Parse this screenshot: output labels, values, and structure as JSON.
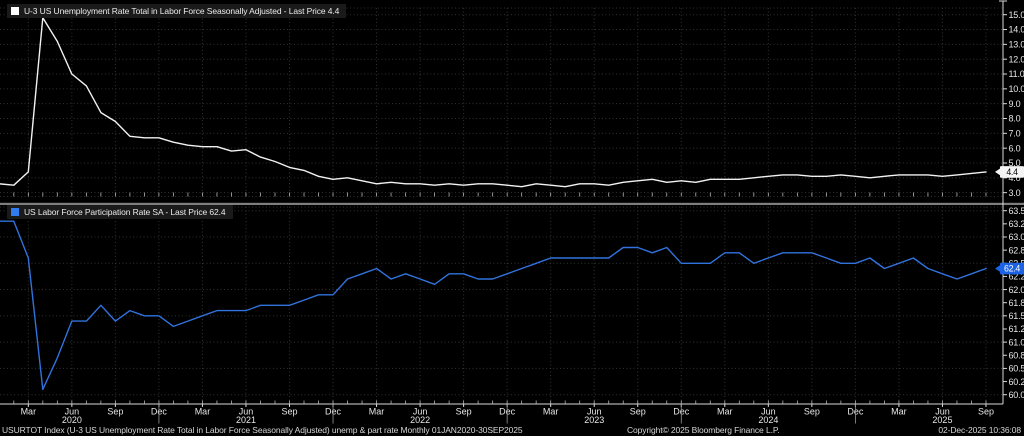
{
  "window": {
    "status_left": "USURTOT Index (U-3 US Unemployment Rate Total in Labor Force Seasonally Adjusted) unemp & part rate Monthly 01JAN2020-30SEP2025",
    "copyright": "Copyright© 2025 Bloomberg Finance L.P.",
    "datetime": "02-Dec-2025 10:36:08",
    "background_color": "#000000",
    "grid_color": "#323232",
    "axis_color": "#d9d9d9",
    "separator_color": "#7e7e7e",
    "label_color": "#e6e6e6"
  },
  "x_axis": {
    "range": {
      "start": "Jan 2020",
      "end": "Sep 2025",
      "frequency": "monthly",
      "points": 69
    },
    "quarter_ticks": [
      {
        "i": 2,
        "label": "Mar"
      },
      {
        "i": 5,
        "label": "Jun"
      },
      {
        "i": 8,
        "label": "Sep"
      },
      {
        "i": 11,
        "label": "Dec"
      },
      {
        "i": 14,
        "label": "Mar"
      },
      {
        "i": 17,
        "label": "Jun"
      },
      {
        "i": 20,
        "label": "Sep"
      },
      {
        "i": 23,
        "label": "Dec"
      },
      {
        "i": 26,
        "label": "Mar"
      },
      {
        "i": 29,
        "label": "Jun"
      },
      {
        "i": 32,
        "label": "Sep"
      },
      {
        "i": 35,
        "label": "Dec"
      },
      {
        "i": 38,
        "label": "Mar"
      },
      {
        "i": 41,
        "label": "Jun"
      },
      {
        "i": 44,
        "label": "Sep"
      },
      {
        "i": 47,
        "label": "Dec"
      },
      {
        "i": 50,
        "label": "Mar"
      },
      {
        "i": 53,
        "label": "Jun"
      },
      {
        "i": 56,
        "label": "Sep"
      },
      {
        "i": 59,
        "label": "Dec"
      },
      {
        "i": 62,
        "label": "Mar"
      },
      {
        "i": 65,
        "label": "Jun"
      },
      {
        "i": 68,
        "label": "Sep"
      }
    ],
    "year_ticks": [
      {
        "i": 5,
        "label": "2020"
      },
      {
        "i": 17,
        "label": "2021"
      },
      {
        "i": 29,
        "label": "2022"
      },
      {
        "i": 41,
        "label": "2023"
      },
      {
        "i": 53,
        "label": "2024"
      },
      {
        "i": 65,
        "label": "2025"
      }
    ],
    "year_separator_indices": [
      11,
      23,
      35,
      47,
      59
    ]
  },
  "chart_data": [
    {
      "type": "line",
      "title": "U-3 US Unemployment Rate Total in Labor Force Seasonally Adjusted - Last Price 4.4",
      "series_name": "U-3 US Unemployment Rate Total in Labor Force Seasonally Adjusted",
      "last_price": "4.4",
      "line_color": "#f2f2f2",
      "marker_color": "#ffffff",
      "badge_bg": "#f4f4f4",
      "badge_fg": "#000000",
      "ylim": [
        2.78,
        15.45
      ],
      "grid_step": 1.0,
      "legend_position": "top-left",
      "yticks": [
        {
          "v": 15.0,
          "label": "15.0"
        },
        {
          "v": 14.0,
          "label": "14.0"
        },
        {
          "v": 13.0,
          "label": "13.0"
        },
        {
          "v": 12.0,
          "label": "12.0"
        },
        {
          "v": 11.0,
          "label": "11.0"
        },
        {
          "v": 10.0,
          "label": "10.0"
        },
        {
          "v": 9.0,
          "label": "9.0"
        },
        {
          "v": 8.0,
          "label": "8.0"
        },
        {
          "v": 7.0,
          "label": "7.0"
        },
        {
          "v": 6.0,
          "label": "6.0"
        },
        {
          "v": 5.0,
          "label": "5.0"
        },
        {
          "v": 4.0,
          "label": "4.0"
        },
        {
          "v": 3.0,
          "label": "3.0"
        }
      ],
      "values": [
        3.6,
        3.5,
        4.4,
        14.8,
        13.2,
        11.0,
        10.2,
        8.4,
        7.8,
        6.8,
        6.7,
        6.7,
        6.4,
        6.2,
        6.1,
        6.1,
        5.8,
        5.9,
        5.4,
        5.1,
        4.7,
        4.5,
        4.1,
        3.9,
        4.0,
        3.8,
        3.6,
        3.7,
        3.6,
        3.6,
        3.5,
        3.6,
        3.5,
        3.6,
        3.6,
        3.5,
        3.4,
        3.6,
        3.5,
        3.4,
        3.6,
        3.6,
        3.5,
        3.7,
        3.8,
        3.9,
        3.7,
        3.8,
        3.7,
        3.9,
        3.9,
        3.9,
        4.0,
        4.1,
        4.2,
        4.2,
        4.1,
        4.1,
        4.2,
        4.1,
        4.0,
        4.1,
        4.2,
        4.2,
        4.2,
        4.1,
        4.2,
        4.3,
        4.4
      ]
    },
    {
      "type": "line",
      "title": "US Labor Force Participation Rate SA - Last Price 62.4",
      "series_name": "US Labor Force Participation Rate SA",
      "last_price": "62.4",
      "line_color": "#3173dd",
      "marker_color": "#2f7bef",
      "badge_bg": "#1b62e4",
      "badge_fg": "#ffffff",
      "ylim": [
        59.82,
        63.57
      ],
      "grid_step": 0.5,
      "legend_position": "top-left",
      "yticks": [
        {
          "v": 63.5,
          "label": "63.5"
        },
        {
          "v": 63.25,
          "label": "63.2"
        },
        {
          "v": 63.0,
          "label": "63.0"
        },
        {
          "v": 62.75,
          "label": "62.8"
        },
        {
          "v": 62.5,
          "label": "62.5"
        },
        {
          "v": 62.25,
          "label": "62.2"
        },
        {
          "v": 62.0,
          "label": "62.0"
        },
        {
          "v": 61.75,
          "label": "61.8"
        },
        {
          "v": 61.5,
          "label": "61.5"
        },
        {
          "v": 61.25,
          "label": "61.2"
        },
        {
          "v": 61.0,
          "label": "61.0"
        },
        {
          "v": 60.75,
          "label": "60.8"
        },
        {
          "v": 60.5,
          "label": "60.5"
        },
        {
          "v": 60.25,
          "label": "60.2"
        },
        {
          "v": 60.0,
          "label": "60.0"
        }
      ],
      "values": [
        63.3,
        63.3,
        62.6,
        60.1,
        60.7,
        61.4,
        61.4,
        61.7,
        61.4,
        61.6,
        61.5,
        61.5,
        61.3,
        61.4,
        61.5,
        61.6,
        61.6,
        61.6,
        61.7,
        61.7,
        61.7,
        61.8,
        61.9,
        61.9,
        62.2,
        62.3,
        62.4,
        62.2,
        62.3,
        62.2,
        62.1,
        62.3,
        62.3,
        62.2,
        62.2,
        62.3,
        62.4,
        62.5,
        62.6,
        62.6,
        62.6,
        62.6,
        62.6,
        62.8,
        62.8,
        62.7,
        62.8,
        62.5,
        62.5,
        62.5,
        62.7,
        62.7,
        62.5,
        62.6,
        62.7,
        62.7,
        62.7,
        62.6,
        62.5,
        62.5,
        62.6,
        62.4,
        62.5,
        62.6,
        62.4,
        62.3,
        62.2,
        62.3,
        62.4
      ]
    }
  ]
}
